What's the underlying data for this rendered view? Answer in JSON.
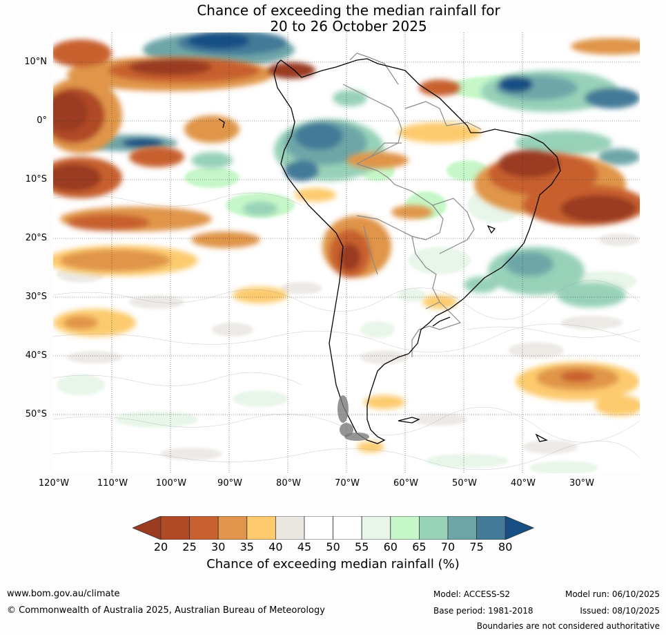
{
  "title_line1": "Chance of exceeding the median rainfall for",
  "title_line2": "20 to 26 October 2025",
  "map": {
    "region": "South America",
    "lat_labels": [
      "10°N",
      "0°",
      "10°S",
      "20°S",
      "30°S",
      "40°S",
      "50°S"
    ],
    "lon_labels": [
      "120°W",
      "110°W",
      "100°W",
      "90°W",
      "80°W",
      "70°W",
      "60°W",
      "50°W",
      "40°W",
      "30°W"
    ],
    "lat_range": [
      -60,
      15
    ],
    "lon_range": [
      -120,
      -20
    ]
  },
  "legend": {
    "ticks": [
      "20",
      "25",
      "30",
      "35",
      "40",
      "45",
      "50",
      "55",
      "60",
      "65",
      "70",
      "75",
      "80"
    ],
    "colors": [
      "#9a3b22",
      "#b04a26",
      "#c8612f",
      "#e0954a",
      "#fdcb6e",
      "#ebe8e3",
      "#ffffff",
      "#ffffff",
      "#e8f5e9",
      "#c6f7c8",
      "#97d1b8",
      "#6ea6a8",
      "#437a98",
      "#174f85"
    ],
    "label": "Chance of exceeding median rainfall (%)"
  },
  "footer": {
    "website": "www.bom.gov.au/climate",
    "copyright": "© Commonwealth of Australia 2025, Australian Bureau of Meteorology",
    "model": "Model: ACCESS-S2",
    "base_period": "Base period: 1981-2018",
    "model_run": "Model run: 06/10/2025",
    "issued": "Issued: 08/10/2025",
    "disclaimer": "Boundaries are not considered authoritative"
  }
}
